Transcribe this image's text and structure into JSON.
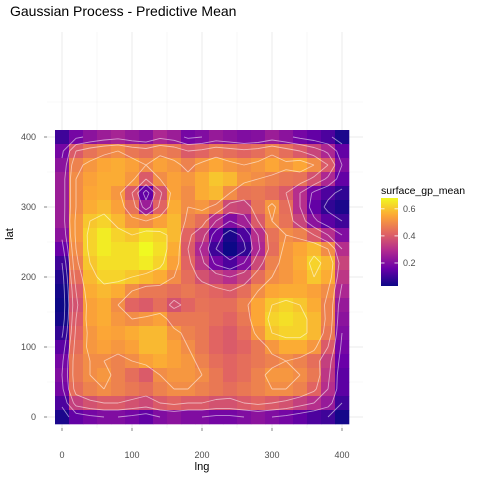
{
  "chart_data": {
    "type": "heatmap",
    "title": "Gaussian Process - Predictive Mean",
    "xlabel": "lng",
    "ylabel": "lat",
    "xlim": [
      -10,
      410
    ],
    "ylim": [
      -10,
      410
    ],
    "x_ticks": [
      0,
      100,
      200,
      300,
      400
    ],
    "y_ticks": [
      0,
      100,
      200,
      300,
      400
    ],
    "x_tick_labels": [
      "0",
      "100",
      "200",
      "300",
      "400"
    ],
    "y_tick_labels": [
      "0",
      "100",
      "200",
      "300",
      "400"
    ],
    "grid": true,
    "colorscale": "plasma",
    "colorscale_stops": [
      "#0d0887",
      "#6a00a8",
      "#b12a90",
      "#e16462",
      "#fca636",
      "#f0f921"
    ],
    "value_range": [
      0.03,
      0.68
    ],
    "legend": {
      "title": "surface_gp_mean",
      "position": "right",
      "ticks": [
        0.2,
        0.4,
        0.6
      ],
      "tick_labels": [
        "0.2",
        "0.4",
        "0.6"
      ]
    },
    "grid_step": 20,
    "x": [
      0,
      20,
      40,
      60,
      80,
      100,
      120,
      140,
      160,
      180,
      200,
      220,
      240,
      260,
      280,
      300,
      320,
      340,
      360,
      380,
      400
    ],
    "y": [
      400,
      380,
      360,
      340,
      320,
      300,
      280,
      260,
      240,
      220,
      200,
      180,
      160,
      140,
      120,
      100,
      80,
      60,
      40,
      20,
      0
    ],
    "z": [
      [
        0.1,
        0.18,
        0.22,
        0.25,
        0.27,
        0.24,
        0.22,
        0.28,
        0.25,
        0.18,
        0.2,
        0.24,
        0.22,
        0.2,
        0.21,
        0.25,
        0.22,
        0.18,
        0.15,
        0.12,
        0.05
      ],
      [
        0.18,
        0.4,
        0.45,
        0.48,
        0.5,
        0.46,
        0.44,
        0.48,
        0.46,
        0.4,
        0.42,
        0.46,
        0.44,
        0.42,
        0.44,
        0.48,
        0.44,
        0.4,
        0.35,
        0.28,
        0.15
      ],
      [
        0.22,
        0.48,
        0.52,
        0.55,
        0.56,
        0.54,
        0.5,
        0.54,
        0.52,
        0.48,
        0.52,
        0.55,
        0.52,
        0.5,
        0.52,
        0.55,
        0.52,
        0.55,
        0.5,
        0.4,
        0.2
      ],
      [
        0.25,
        0.5,
        0.54,
        0.56,
        0.56,
        0.52,
        0.4,
        0.5,
        0.54,
        0.52,
        0.56,
        0.6,
        0.58,
        0.52,
        0.5,
        0.48,
        0.46,
        0.45,
        0.38,
        0.28,
        0.15
      ],
      [
        0.25,
        0.5,
        0.55,
        0.56,
        0.52,
        0.4,
        0.15,
        0.38,
        0.54,
        0.5,
        0.56,
        0.58,
        0.5,
        0.45,
        0.46,
        0.44,
        0.4,
        0.3,
        0.18,
        0.12,
        0.08
      ],
      [
        0.25,
        0.5,
        0.56,
        0.58,
        0.54,
        0.45,
        0.25,
        0.42,
        0.56,
        0.5,
        0.52,
        0.48,
        0.36,
        0.35,
        0.45,
        0.52,
        0.44,
        0.3,
        0.15,
        0.08,
        0.05
      ],
      [
        0.25,
        0.52,
        0.6,
        0.62,
        0.58,
        0.52,
        0.5,
        0.54,
        0.58,
        0.48,
        0.44,
        0.3,
        0.2,
        0.26,
        0.4,
        0.5,
        0.45,
        0.35,
        0.22,
        0.14,
        0.1
      ],
      [
        0.22,
        0.52,
        0.62,
        0.66,
        0.62,
        0.6,
        0.64,
        0.62,
        0.58,
        0.42,
        0.34,
        0.15,
        0.05,
        0.12,
        0.3,
        0.45,
        0.5,
        0.48,
        0.4,
        0.3,
        0.2
      ],
      [
        0.16,
        0.5,
        0.62,
        0.66,
        0.64,
        0.64,
        0.68,
        0.64,
        0.56,
        0.4,
        0.28,
        0.1,
        0.03,
        0.08,
        0.28,
        0.44,
        0.52,
        0.55,
        0.58,
        0.5,
        0.3
      ],
      [
        0.1,
        0.48,
        0.6,
        0.64,
        0.64,
        0.64,
        0.66,
        0.62,
        0.54,
        0.42,
        0.32,
        0.18,
        0.12,
        0.2,
        0.36,
        0.48,
        0.52,
        0.56,
        0.62,
        0.58,
        0.35
      ],
      [
        0.06,
        0.44,
        0.58,
        0.62,
        0.62,
        0.6,
        0.58,
        0.56,
        0.5,
        0.44,
        0.38,
        0.34,
        0.3,
        0.35,
        0.44,
        0.5,
        0.52,
        0.55,
        0.6,
        0.56,
        0.32
      ],
      [
        0.04,
        0.4,
        0.56,
        0.58,
        0.56,
        0.5,
        0.46,
        0.46,
        0.44,
        0.46,
        0.44,
        0.42,
        0.4,
        0.44,
        0.5,
        0.55,
        0.56,
        0.56,
        0.54,
        0.5,
        0.28
      ],
      [
        0.03,
        0.38,
        0.54,
        0.56,
        0.5,
        0.42,
        0.4,
        0.44,
        0.38,
        0.42,
        0.45,
        0.44,
        0.44,
        0.48,
        0.55,
        0.6,
        0.62,
        0.6,
        0.56,
        0.48,
        0.24
      ],
      [
        0.04,
        0.4,
        0.54,
        0.56,
        0.52,
        0.5,
        0.52,
        0.54,
        0.46,
        0.46,
        0.46,
        0.44,
        0.42,
        0.46,
        0.55,
        0.62,
        0.64,
        0.62,
        0.58,
        0.48,
        0.22
      ],
      [
        0.08,
        0.42,
        0.52,
        0.55,
        0.54,
        0.56,
        0.58,
        0.58,
        0.52,
        0.48,
        0.46,
        0.42,
        0.4,
        0.44,
        0.52,
        0.6,
        0.62,
        0.62,
        0.58,
        0.46,
        0.2
      ],
      [
        0.14,
        0.44,
        0.52,
        0.54,
        0.52,
        0.54,
        0.58,
        0.58,
        0.54,
        0.5,
        0.46,
        0.42,
        0.4,
        0.42,
        0.46,
        0.52,
        0.56,
        0.56,
        0.52,
        0.4,
        0.18
      ],
      [
        0.18,
        0.46,
        0.5,
        0.5,
        0.48,
        0.5,
        0.54,
        0.56,
        0.54,
        0.52,
        0.48,
        0.44,
        0.42,
        0.44,
        0.46,
        0.48,
        0.5,
        0.48,
        0.44,
        0.34,
        0.16
      ],
      [
        0.2,
        0.46,
        0.5,
        0.52,
        0.48,
        0.44,
        0.4,
        0.5,
        0.52,
        0.52,
        0.5,
        0.46,
        0.42,
        0.44,
        0.48,
        0.52,
        0.52,
        0.5,
        0.46,
        0.32,
        0.14
      ],
      [
        0.18,
        0.44,
        0.48,
        0.5,
        0.48,
        0.46,
        0.44,
        0.48,
        0.5,
        0.5,
        0.48,
        0.46,
        0.44,
        0.46,
        0.48,
        0.5,
        0.5,
        0.48,
        0.42,
        0.3,
        0.14
      ],
      [
        0.12,
        0.34,
        0.38,
        0.4,
        0.4,
        0.38,
        0.36,
        0.4,
        0.42,
        0.4,
        0.4,
        0.38,
        0.38,
        0.4,
        0.42,
        0.4,
        0.38,
        0.34,
        0.3,
        0.24,
        0.1
      ],
      [
        0.05,
        0.15,
        0.18,
        0.2,
        0.2,
        0.18,
        0.15,
        0.2,
        0.22,
        0.2,
        0.2,
        0.18,
        0.18,
        0.2,
        0.22,
        0.2,
        0.18,
        0.15,
        0.12,
        0.1,
        0.04
      ]
    ]
  }
}
